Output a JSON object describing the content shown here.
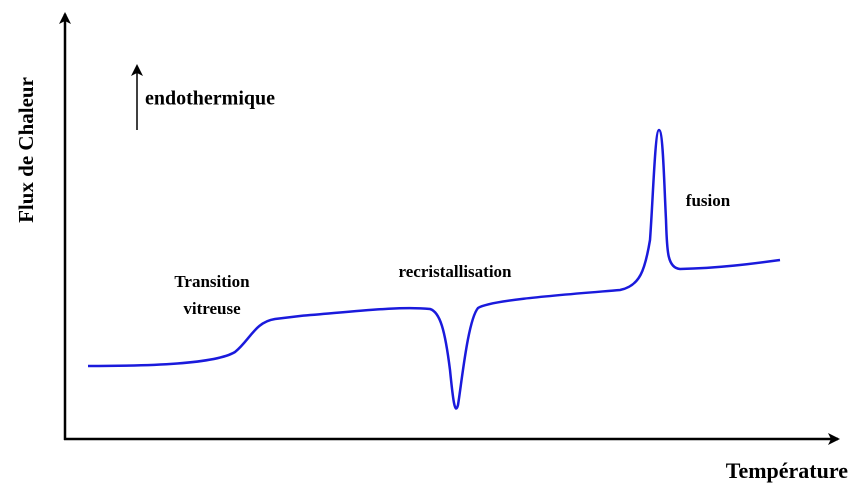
{
  "axes": {
    "y_label": "Flux de Chaleur",
    "x_label": "Température"
  },
  "direction_label": "endothermique",
  "annotations": {
    "glass_transition": [
      "Transition",
      "vitreuse"
    ],
    "recrystallization": "recristallisation",
    "melting": "fusion"
  }
}
